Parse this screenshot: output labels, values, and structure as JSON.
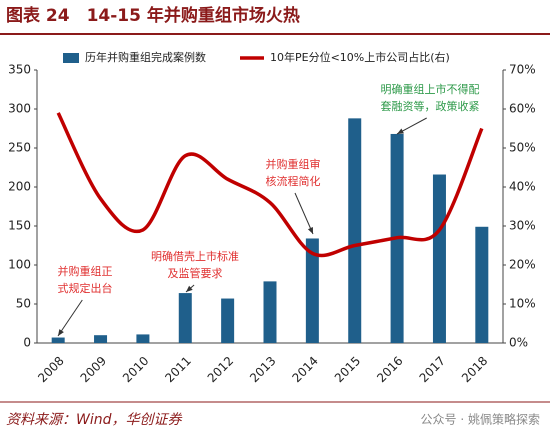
{
  "chart_data": {
    "type": "bar_line",
    "title": "图表 24　14-15 年并购重组市场火热",
    "categories": [
      "2008",
      "2009",
      "2010",
      "2011",
      "2012",
      "2013",
      "2014",
      "2015",
      "2016",
      "2017",
      "2018"
    ],
    "series": [
      {
        "name": "历年并购重组完成案例数",
        "type": "bar",
        "color": "#1f5f8b",
        "values": [
          7,
          10,
          11,
          64,
          57,
          79,
          134,
          288,
          268,
          216,
          149
        ]
      },
      {
        "name": "10年PE分位<10%上市公司占比(右)",
        "type": "line",
        "axis": "y2",
        "color": "#c00000",
        "values": [
          59,
          37,
          29,
          48,
          42,
          36,
          23,
          25,
          27,
          29,
          55
        ]
      }
    ],
    "ylim": [
      0,
      350
    ],
    "yticks": [
      0,
      50,
      100,
      150,
      200,
      250,
      300,
      350
    ],
    "y2lim": [
      0,
      70
    ],
    "y2ticks": [
      {
        "value": 0,
        "label": "0%"
      },
      {
        "value": 10,
        "label": "10%"
      },
      {
        "value": 20,
        "label": "20%"
      },
      {
        "value": 30,
        "label": "30%"
      },
      {
        "value": 40,
        "label": "40%"
      },
      {
        "value": 50,
        "label": "50%"
      },
      {
        "value": 60,
        "label": "60%"
      },
      {
        "value": 70,
        "label": "70%"
      }
    ],
    "annotations": [
      {
        "lines": [
          "并购重组正",
          "式规定出台"
        ],
        "color": "#e03030"
      },
      {
        "lines": [
          "明确借壳上市标准",
          "及监管要求"
        ],
        "color": "#e03030"
      },
      {
        "lines": [
          "并购重组审",
          "核流程简化"
        ],
        "color": "#e03030"
      },
      {
        "lines": [
          "明确重组上市不得配",
          "套融资等，政策收紧"
        ],
        "color": "#2e9a4a"
      }
    ],
    "source": "资料来源：Wind，华创证券",
    "watermark": "公众号 · 姚佩策略探索"
  }
}
